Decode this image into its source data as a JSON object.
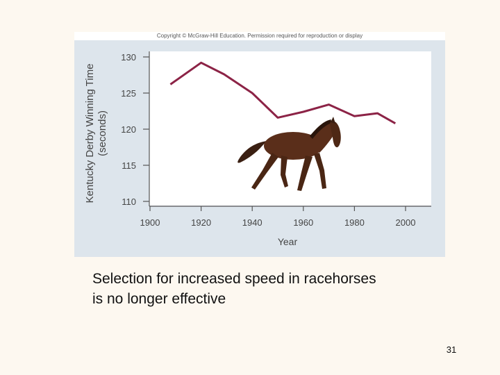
{
  "copyright": "Copyright © McGraw-Hill Education. Permission required for reproduction or display",
  "caption": {
    "line1": "Selection for increased speed in racehorses",
    "line2": "is no longer effective"
  },
  "slide_number": "31",
  "chart_data": {
    "type": "line",
    "ylabel": "Kentucky Derby Winning Time",
    "ylabel_units": "(seconds)",
    "xlabel": "Year",
    "xlim": [
      1900,
      2000
    ],
    "ylim": [
      110,
      130
    ],
    "xticks": [
      1900,
      1920,
      1940,
      1960,
      1980,
      2000
    ],
    "yticks": [
      110,
      115,
      120,
      125,
      130
    ],
    "grid": false,
    "colors": {
      "line": "#8c2346",
      "plot_bg": "#ffffff",
      "panel_bg": "#dde5ec"
    },
    "series": [
      {
        "x": [
          1908,
          1920,
          1929,
          1940,
          1950,
          1960,
          1970,
          1980,
          1989,
          1996
        ],
        "y": [
          126.2,
          129.2,
          127.6,
          125.0,
          121.6,
          122.4,
          123.4,
          121.8,
          122.2,
          120.8
        ]
      }
    ],
    "illustration": "horse-icon"
  }
}
